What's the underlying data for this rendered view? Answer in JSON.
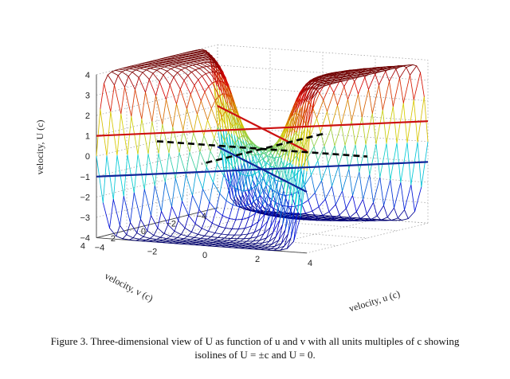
{
  "chart_data": {
    "type": "surface3d",
    "title": "",
    "xlabel": "velocity, u (c)",
    "ylabel": "velocity, v (c)",
    "zlabel": "velocity, U (c)",
    "xlim": [
      -4,
      4
    ],
    "ylim": [
      -4,
      4
    ],
    "zlim": [
      -4,
      4
    ],
    "x_ticks": [
      -4,
      -2,
      0,
      2,
      4
    ],
    "y_ticks": [
      -4,
      -2,
      0,
      2,
      4
    ],
    "z_ticks": [
      -4,
      -3,
      -2,
      -1,
      0,
      1,
      2,
      3,
      4
    ],
    "x_tick_labels": [
      "−4",
      "−2",
      "0",
      "2",
      "4"
    ],
    "y_tick_labels": [
      "−4",
      "−2",
      "0",
      "2",
      "4"
    ],
    "z_tick_labels": [
      "−4",
      "−3",
      "−2",
      "−1",
      "0",
      "1",
      "2",
      "3",
      "4"
    ],
    "grid": true,
    "surface_grid": {
      "u_min": -4,
      "u_max": 4,
      "v_min": -4,
      "v_max": 4,
      "n": 33
    },
    "isolines": [
      {
        "name": "U = +c",
        "value": 1,
        "color": "#cc1010"
      },
      {
        "name": "U = -c",
        "value": -1,
        "color": "#10259a"
      },
      {
        "name": "U = 0",
        "value": 0,
        "color": "#000000",
        "style": "dashed"
      }
    ]
  },
  "caption": {
    "line1": "Figure 3. Three-dimensional view of U as function of u and v with all units multiples of c showing",
    "line2": "isolines of U = ±c and U = 0."
  }
}
